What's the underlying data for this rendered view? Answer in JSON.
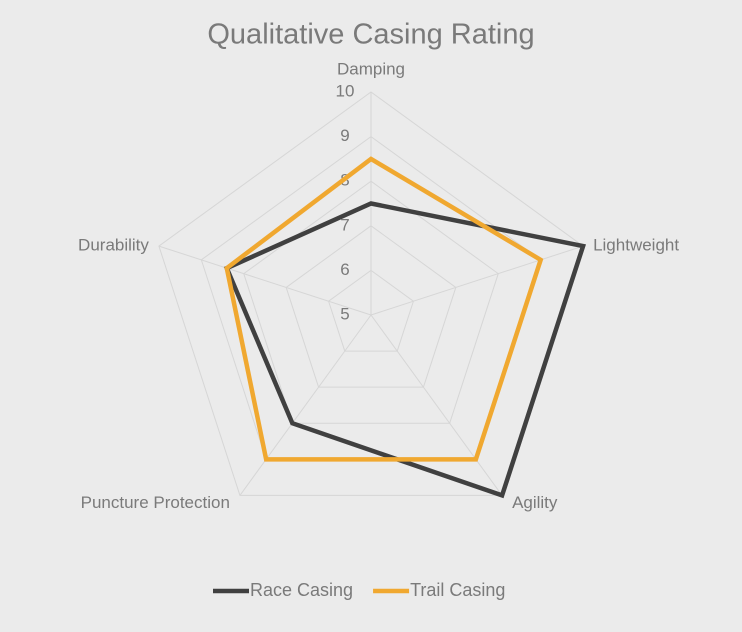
{
  "chart_data": {
    "type": "radar",
    "title": "Qualitative Casing Rating",
    "categories": [
      "Damping",
      "Lightweight",
      "Agility",
      "Puncture Protection",
      "Durability"
    ],
    "series": [
      {
        "name": "Race Casing",
        "color": "#404040",
        "values": [
          7.5,
          10,
          10,
          8,
          8.4
        ]
      },
      {
        "name": "Trail Casing",
        "color": "#f0a830",
        "values": [
          8.5,
          9,
          9,
          9,
          8.4
        ]
      }
    ],
    "ylim": [
      5,
      10
    ],
    "yticks": [
      5,
      6,
      7,
      8,
      9,
      10
    ],
    "grid": true,
    "legend": "bottom"
  }
}
